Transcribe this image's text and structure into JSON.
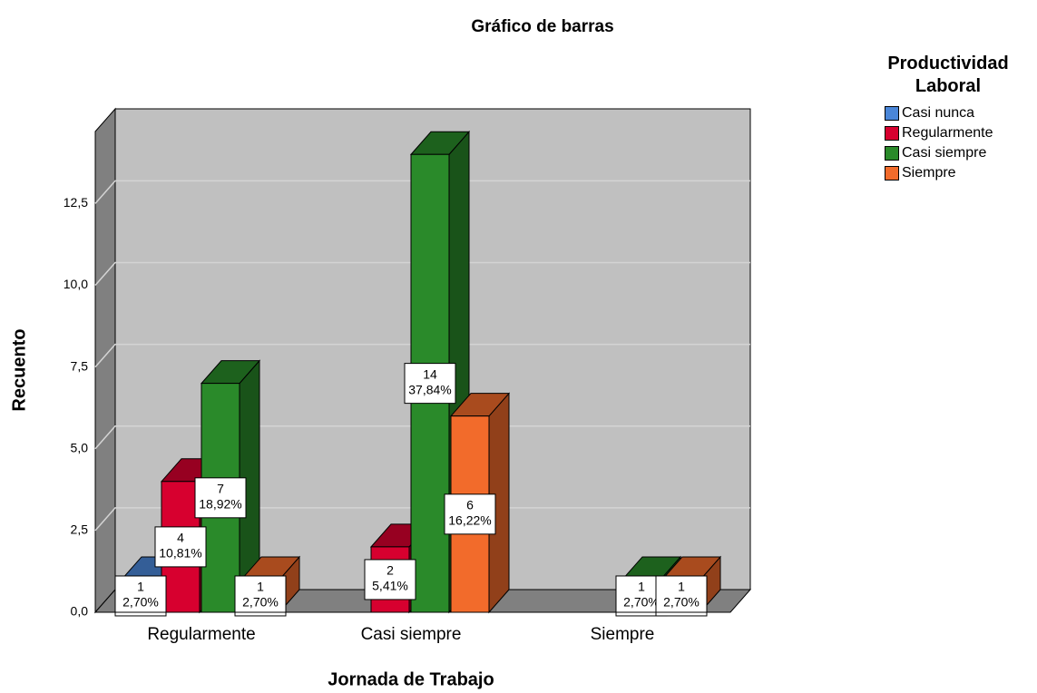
{
  "chart_data": {
    "type": "bar3d",
    "title": "Gráfico de barras",
    "x_label": "Jornada de Trabajo",
    "y_label": "Recuento",
    "legend_title": "Productividad Laboral",
    "categories": [
      "Regularmente",
      "Casi siempre",
      "Siempre"
    ],
    "series": [
      {
        "name": "Casi nunca",
        "color": "#4a86d8",
        "values": [
          1,
          null,
          null
        ],
        "percent_labels": [
          "2,70%",
          null,
          null
        ]
      },
      {
        "name": "Regularmente",
        "color": "#d7002f",
        "values": [
          4,
          2,
          null
        ],
        "percent_labels": [
          "10,81%",
          "5,41%",
          null
        ]
      },
      {
        "name": "Casi siempre",
        "color": "#2a8a2a",
        "values": [
          7,
          14,
          1
        ],
        "percent_labels": [
          "18,92%",
          "37,84%",
          "2,70%"
        ]
      },
      {
        "name": "Siempre",
        "color": "#f26b2b",
        "values": [
          1,
          6,
          1
        ],
        "percent_labels": [
          "2,70%",
          "16,22%",
          "2,70%"
        ]
      }
    ],
    "ylim": [
      0,
      14.7
    ],
    "yticks": [
      {
        "value": 0,
        "label": "0,0"
      },
      {
        "value": 2.5,
        "label": "2,5"
      },
      {
        "value": 5,
        "label": "5,0"
      },
      {
        "value": 7.5,
        "label": "7,5"
      },
      {
        "value": 10,
        "label": "10,0"
      },
      {
        "value": 12.5,
        "label": "12,5"
      }
    ],
    "grid": true,
    "legend": "right"
  }
}
